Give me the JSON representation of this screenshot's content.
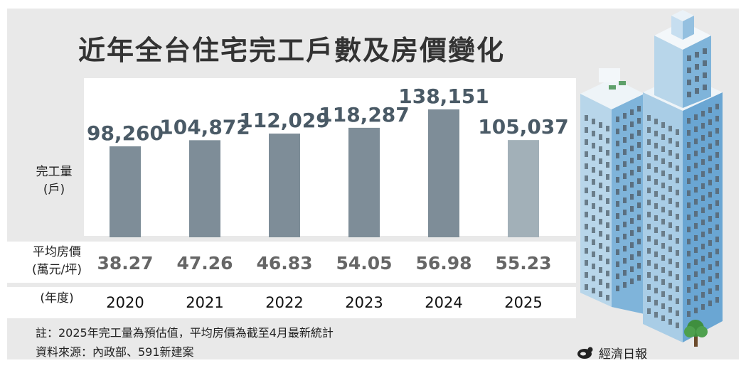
{
  "title": "近年全台住宅完工戶數及房價變化",
  "labels": {
    "completions": [
      "完工量",
      "(戶)"
    ],
    "price": [
      "平均房價",
      "(萬元/坪)"
    ],
    "year": "(年度)"
  },
  "note": "註：2025年完工量為預估值，平均房價為截至4月最新統計",
  "source": "資料來源：內政部、591新建案",
  "brand": "經濟日報",
  "icons": {
    "brand_logo": "udn-logo-icon",
    "illustration": "buildings-illustration"
  },
  "colors": {
    "bar": "#7e8d98",
    "bar_estimate": "#a2b0b8",
    "value_label": "#4a5a66",
    "background": "#e9e9e9"
  },
  "chart_data": {
    "type": "bar",
    "title": "近年全台住宅完工戶數及房價變化",
    "categories": [
      "2020",
      "2021",
      "2022",
      "2023",
      "2024",
      "2025"
    ],
    "values": [
      98260,
      104872,
      112029,
      118287,
      138151,
      105037
    ],
    "value_labels": [
      "98,260",
      "104,872",
      "112,029",
      "118,287",
      "138,151",
      "105,037"
    ],
    "estimated": [
      false,
      false,
      false,
      false,
      false,
      true
    ],
    "ylabel": "完工量(戶)",
    "ylim": [
      0,
      138151
    ],
    "grid": false,
    "price_row": {
      "label": "平均房價(萬元/坪)",
      "values": [
        38.27,
        47.26,
        46.83,
        54.05,
        56.98,
        55.23
      ],
      "labels": [
        "38.27",
        "47.26",
        "46.83",
        "54.05",
        "56.98",
        "55.23"
      ]
    }
  }
}
